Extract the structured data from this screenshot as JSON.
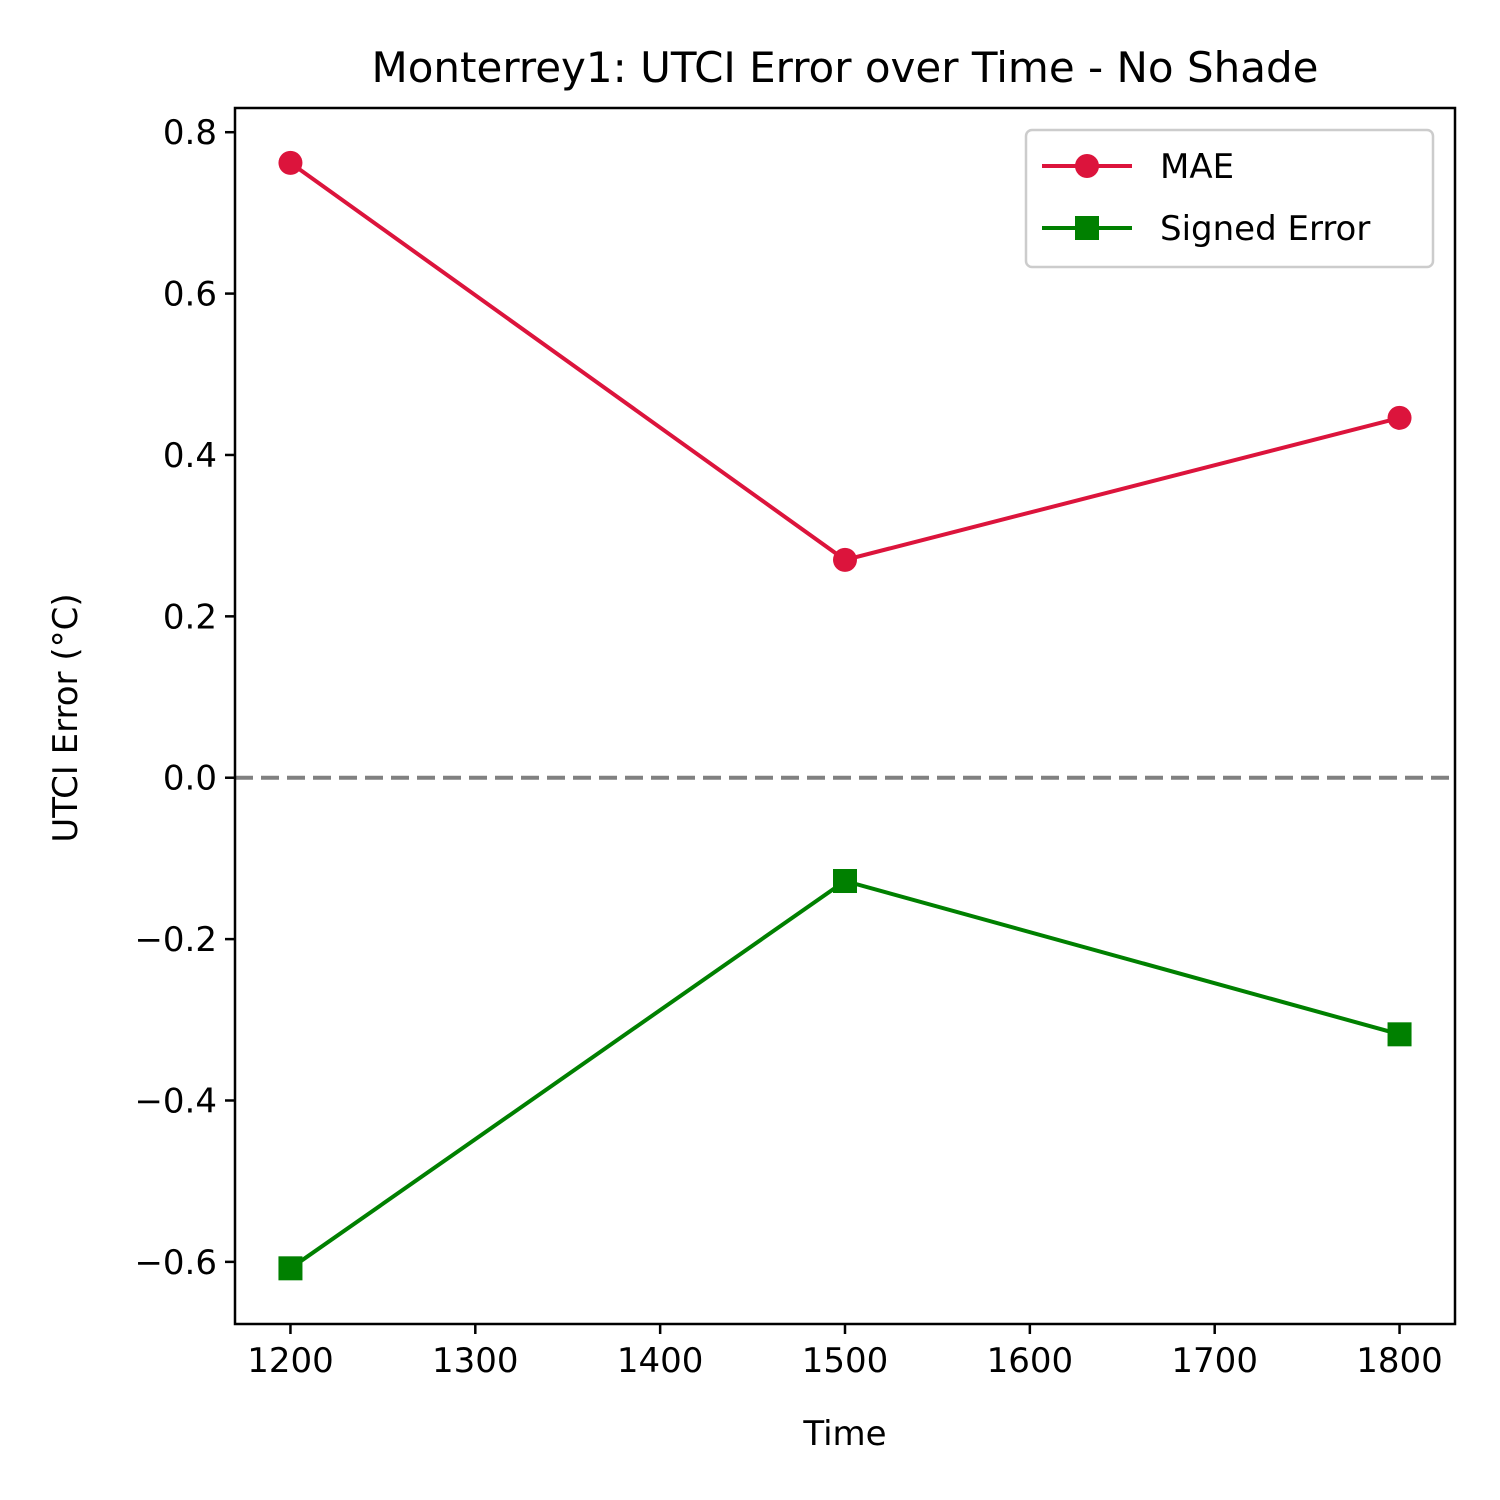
{
  "chart_data": {
    "type": "line",
    "title": "Monterrey1: UTCI Error over Time - No Shade",
    "xlabel": "Time",
    "ylabel": "UTCI Error (°C)",
    "x": [
      1200,
      1500,
      1800
    ],
    "xlim": [
      1170,
      1830
    ],
    "ylim": [
      -0.677,
      0.83
    ],
    "xticks": [
      1200,
      1300,
      1400,
      1500,
      1600,
      1700,
      1800
    ],
    "xtick_labels": [
      "1200",
      "1300",
      "1400",
      "1500",
      "1600",
      "1700",
      "1800"
    ],
    "yticks": [
      -0.6,
      -0.4,
      -0.2,
      0.0,
      0.2,
      0.4,
      0.6,
      0.8
    ],
    "ytick_labels": [
      "−0.6",
      "−0.4",
      "−0.2",
      "0.0",
      "0.2",
      "0.4",
      "0.6",
      "0.8"
    ],
    "reference_line": {
      "y": 0.0,
      "style": "dashed",
      "color": "#808080"
    },
    "grid": false,
    "legend_position": "top-right",
    "series": [
      {
        "name": "MAE",
        "values": [
          0.762,
          0.27,
          0.446
        ],
        "color": "#dc143c",
        "marker": "circle"
      },
      {
        "name": "Signed Error",
        "values": [
          -0.608,
          -0.128,
          -0.318
        ],
        "color": "#008000",
        "marker": "square"
      }
    ]
  }
}
